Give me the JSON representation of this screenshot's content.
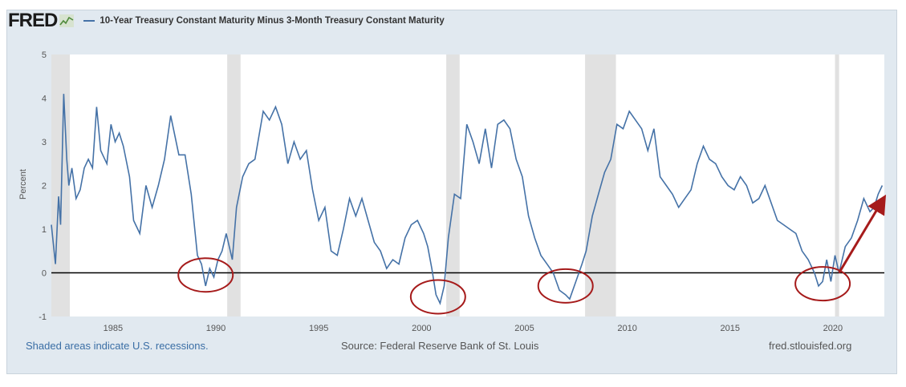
{
  "logo": {
    "text": "FRED",
    "icon": "chart-line-icon"
  },
  "legend": {
    "series_name": "10-Year Treasury Constant Maturity Minus 3-Month Treasury Constant Maturity",
    "color": "#4572a7"
  },
  "footer": {
    "note": "Shaded areas indicate U.S. recessions.",
    "source": "Source: Federal Reserve Bank of St. Louis",
    "site": "fred.stlouisfed.org"
  },
  "chart_data": {
    "type": "line",
    "title": "",
    "xlabel": "",
    "ylabel": "Percent",
    "xlim": [
      1982.0,
      2022.5
    ],
    "ylim": [
      -1,
      5
    ],
    "x_ticks": [
      1985,
      1990,
      1995,
      2000,
      2005,
      2010,
      2015,
      2020
    ],
    "y_ticks": [
      -1,
      0,
      1,
      2,
      3,
      4,
      5
    ],
    "grid": false,
    "line_color": "#4572a7",
    "recessions": [
      [
        1981.55,
        1982.9
      ],
      [
        1990.55,
        1991.2
      ],
      [
        2001.2,
        2001.85
      ],
      [
        2007.95,
        2009.45
      ],
      [
        2020.1,
        2020.3
      ]
    ],
    "zero_line": true,
    "annotations": {
      "circles_around_x": [
        1989.5,
        2000.8,
        2007.0,
        2019.5
      ],
      "arrow": {
        "from": [
          2020.3,
          0
        ],
        "to": [
          2022.4,
          1.65
        ]
      },
      "color": "#a61b1b"
    },
    "series": [
      {
        "name": "10-Year Treasury Constant Maturity Minus 3-Month Treasury Constant Maturity",
        "x": [
          1982.0,
          1982.2,
          1982.35,
          1982.45,
          1982.6,
          1982.75,
          1982.85,
          1983.0,
          1983.2,
          1983.4,
          1983.6,
          1983.8,
          1984.0,
          1984.2,
          1984.4,
          1984.7,
          1984.9,
          1985.1,
          1985.3,
          1985.5,
          1985.8,
          1986.0,
          1986.3,
          1986.6,
          1986.9,
          1987.2,
          1987.5,
          1987.8,
          1988.2,
          1988.5,
          1988.8,
          1989.1,
          1989.3,
          1989.5,
          1989.7,
          1989.9,
          1990.1,
          1990.3,
          1990.5,
          1990.8,
          1991.0,
          1991.3,
          1991.6,
          1991.9,
          1992.3,
          1992.6,
          1992.9,
          1993.2,
          1993.5,
          1993.8,
          1994.1,
          1994.4,
          1994.7,
          1995.0,
          1995.3,
          1995.6,
          1995.9,
          1996.2,
          1996.5,
          1996.8,
          1997.1,
          1997.4,
          1997.7,
          1998.0,
          1998.3,
          1998.6,
          1998.9,
          1999.2,
          1999.5,
          1999.8,
          2000.1,
          2000.3,
          2000.5,
          2000.7,
          2000.9,
          2001.1,
          2001.3,
          2001.6,
          2001.9,
          2002.2,
          2002.5,
          2002.8,
          2003.1,
          2003.4,
          2003.7,
          2004.0,
          2004.3,
          2004.6,
          2004.9,
          2005.2,
          2005.5,
          2005.8,
          2006.1,
          2006.4,
          2006.7,
          2007.0,
          2007.2,
          2007.5,
          2007.8,
          2008.0,
          2008.3,
          2008.6,
          2008.9,
          2009.2,
          2009.5,
          2009.8,
          2010.1,
          2010.4,
          2010.7,
          2011.0,
          2011.3,
          2011.6,
          2011.9,
          2012.2,
          2012.5,
          2012.8,
          2013.1,
          2013.4,
          2013.7,
          2014.0,
          2014.3,
          2014.6,
          2014.9,
          2015.2,
          2015.5,
          2015.8,
          2016.1,
          2016.4,
          2016.7,
          2017.0,
          2017.3,
          2017.6,
          2017.9,
          2018.2,
          2018.5,
          2018.8,
          2019.1,
          2019.3,
          2019.5,
          2019.7,
          2019.9,
          2020.1,
          2020.3,
          2020.6,
          2020.9,
          2021.2,
          2021.5,
          2021.8,
          2022.0,
          2022.2,
          2022.4
        ],
        "values": [
          1.1,
          0.2,
          1.75,
          1.1,
          4.1,
          2.6,
          2.0,
          2.4,
          1.7,
          1.9,
          2.4,
          2.6,
          2.4,
          3.8,
          2.8,
          2.5,
          3.4,
          3.0,
          3.2,
          2.9,
          2.2,
          1.2,
          0.9,
          2.0,
          1.5,
          2.0,
          2.6,
          3.6,
          2.7,
          2.7,
          1.8,
          0.4,
          0.2,
          -0.3,
          0.1,
          -0.1,
          0.3,
          0.5,
          0.9,
          0.3,
          1.5,
          2.2,
          2.5,
          2.6,
          3.7,
          3.5,
          3.8,
          3.4,
          2.5,
          3.0,
          2.6,
          2.8,
          1.9,
          1.2,
          1.5,
          0.5,
          0.4,
          1.0,
          1.7,
          1.3,
          1.7,
          1.2,
          0.7,
          0.5,
          0.1,
          0.3,
          0.2,
          0.8,
          1.1,
          1.2,
          0.9,
          0.6,
          0.1,
          -0.5,
          -0.7,
          -0.3,
          0.8,
          1.8,
          1.7,
          3.4,
          3.0,
          2.5,
          3.3,
          2.4,
          3.4,
          3.5,
          3.3,
          2.6,
          2.2,
          1.3,
          0.8,
          0.4,
          0.2,
          0.0,
          -0.4,
          -0.5,
          -0.6,
          -0.2,
          0.2,
          0.5,
          1.3,
          1.8,
          2.3,
          2.6,
          3.4,
          3.3,
          3.7,
          3.5,
          3.3,
          2.8,
          3.3,
          2.2,
          2.0,
          1.8,
          1.5,
          1.7,
          1.9,
          2.5,
          2.9,
          2.6,
          2.5,
          2.2,
          2.0,
          1.9,
          2.2,
          2.0,
          1.6,
          1.7,
          2.0,
          1.6,
          1.2,
          1.1,
          1.0,
          0.9,
          0.5,
          0.3,
          0.0,
          -0.3,
          -0.2,
          0.3,
          -0.2,
          0.4,
          0.0,
          0.6,
          0.8,
          1.2,
          1.7,
          1.4,
          1.5,
          1.8,
          2.0
        ]
      }
    ]
  }
}
